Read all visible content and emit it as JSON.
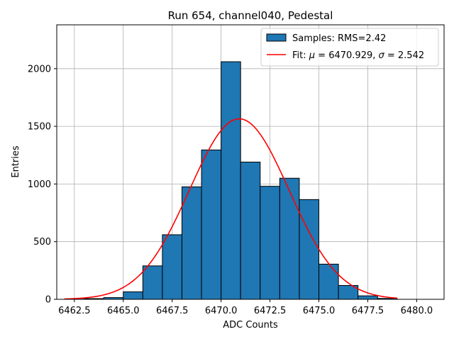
{
  "chart_data": {
    "type": "bar",
    "title": "Run 654, channel040, Pedestal",
    "xlabel": "ADC Counts",
    "ylabel": "Entries",
    "xlim": [
      6461.6,
      6481.4
    ],
    "ylim": [
      0,
      2380
    ],
    "grid": true,
    "legend_position": "top-right",
    "x_ticks": [
      6462.5,
      6465.0,
      6467.5,
      6470.0,
      6472.5,
      6475.0,
      6477.5,
      6480.0
    ],
    "x_tick_labels": [
      "6462.5",
      "6465.0",
      "6467.5",
      "6470.0",
      "6472.5",
      "6475.0",
      "6477.5",
      "6480.0"
    ],
    "y_ticks": [
      0,
      500,
      1000,
      1500,
      2000
    ],
    "y_tick_labels": [
      "0",
      "500",
      "1000",
      "1500",
      "2000"
    ],
    "histogram": {
      "name": "Samples: RMS=2.42",
      "color": "#1f77b4",
      "edge_color": "#000000",
      "bin_edges": [
        6462,
        6463,
        6464,
        6465,
        6466,
        6467,
        6468,
        6469,
        6470,
        6471,
        6472,
        6473,
        6474,
        6475,
        6476,
        6477,
        6478,
        6479
      ],
      "counts": [
        2,
        6,
        15,
        65,
        290,
        560,
        975,
        1295,
        2060,
        1190,
        980,
        1050,
        865,
        305,
        120,
        30,
        8
      ]
    },
    "fit": {
      "name": "Fit: μ = 6470.929, σ = 2.542",
      "legend_prefix": "Fit: ",
      "mu_symbol": "μ",
      "mu_text": " = 6470.929, ",
      "sigma_symbol": "σ",
      "sigma_text": " = 2.542",
      "color": "#ff0000",
      "mu": 6470.929,
      "sigma": 2.542,
      "amplitude": 1565,
      "x_range": [
        6462,
        6479
      ]
    }
  }
}
